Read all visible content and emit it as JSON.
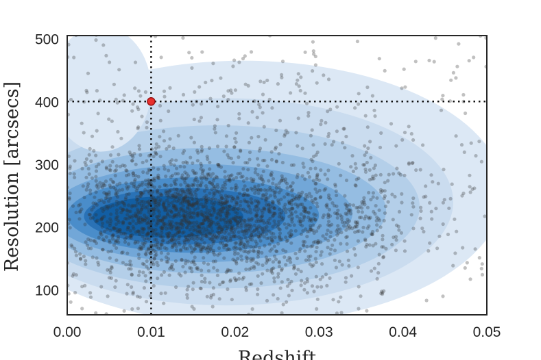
{
  "chart_data": {
    "type": "scatter",
    "title": "",
    "xlabel": "Redshift",
    "ylabel": "Resolution [arcsecs]",
    "xlim": [
      0.0,
      0.05
    ],
    "ylim": [
      60,
      505
    ],
    "x_ticks": [
      "0.00",
      "0.01",
      "0.02",
      "0.03",
      "0.04",
      "0.05"
    ],
    "y_ticks": [
      "100",
      "200",
      "300",
      "400",
      "500"
    ],
    "grid": false,
    "legend": "none",
    "reference_lines": {
      "x": 0.01,
      "y": 400
    },
    "highlight_point": {
      "x": 0.01,
      "y": 400
    },
    "density": {
      "peak_center": {
        "x": 0.015,
        "y": 215
      },
      "main_extent_x": [
        0.0,
        0.047
      ],
      "main_extent_y": [
        80,
        450
      ]
    },
    "colors": {
      "points": "#333333",
      "highlight": "#e8302e",
      "density_light": "#d8e6f4",
      "density_dark": "#0a5a9e",
      "reference_line": "#111111"
    }
  }
}
